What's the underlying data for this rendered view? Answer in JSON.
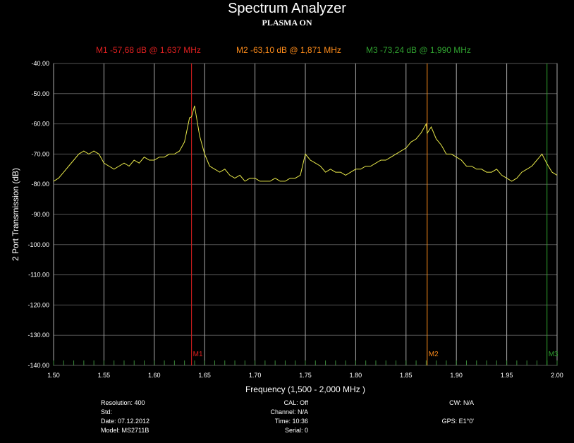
{
  "chart_data": {
    "type": "line",
    "title": "Spectrum Analyzer",
    "subtitle": "PLASMA ON",
    "xlabel": "Frequency (1,500 - 2,000 MHz )",
    "ylabel": "2 Port Transmission (dB)",
    "xlim": [
      1.5,
      2.0
    ],
    "ylim": [
      -140,
      -40
    ],
    "x_ticks": [
      "1.50",
      "1.55",
      "1.60",
      "1.65",
      "1.70",
      "1.75",
      "1.80",
      "1.85",
      "1.90",
      "1.95",
      "2.00"
    ],
    "y_ticks": [
      "-40.00",
      "-50.00",
      "-60.00",
      "-70.00",
      "-80.00",
      "-90.00",
      "-100.00",
      "-110.00",
      "-120.00",
      "-130.00",
      "-140.00"
    ],
    "grid": true,
    "series": [
      {
        "color": "#e8e84a",
        "x": [
          1.5,
          1.505,
          1.51,
          1.515,
          1.52,
          1.525,
          1.53,
          1.535,
          1.54,
          1.545,
          1.55,
          1.555,
          1.56,
          1.565,
          1.57,
          1.575,
          1.58,
          1.585,
          1.59,
          1.595,
          1.6,
          1.605,
          1.61,
          1.615,
          1.62,
          1.625,
          1.63,
          1.635,
          1.637,
          1.64,
          1.645,
          1.65,
          1.655,
          1.66,
          1.665,
          1.67,
          1.675,
          1.68,
          1.685,
          1.69,
          1.695,
          1.7,
          1.705,
          1.71,
          1.715,
          1.72,
          1.725,
          1.73,
          1.735,
          1.74,
          1.745,
          1.75,
          1.755,
          1.76,
          1.765,
          1.77,
          1.775,
          1.78,
          1.785,
          1.79,
          1.795,
          1.8,
          1.805,
          1.81,
          1.815,
          1.82,
          1.825,
          1.83,
          1.835,
          1.84,
          1.845,
          1.85,
          1.855,
          1.86,
          1.865,
          1.87,
          1.871,
          1.875,
          1.88,
          1.885,
          1.89,
          1.895,
          1.9,
          1.905,
          1.91,
          1.915,
          1.92,
          1.925,
          1.93,
          1.935,
          1.94,
          1.945,
          1.95,
          1.955,
          1.96,
          1.965,
          1.97,
          1.975,
          1.98,
          1.985,
          1.99,
          1.995,
          2.0
        ],
        "y": [
          -79,
          -78,
          -76,
          -74,
          -72,
          -70,
          -69,
          -70,
          -69,
          -70,
          -73,
          -74,
          -75,
          -74,
          -73,
          -74,
          -72,
          -73,
          -71,
          -72,
          -72,
          -71,
          -71,
          -70,
          -70,
          -69,
          -66,
          -58,
          -57.68,
          -54,
          -64,
          -70,
          -74,
          -75,
          -76,
          -75,
          -77,
          -78,
          -77,
          -79,
          -78,
          -78,
          -79,
          -79,
          -79,
          -78,
          -79,
          -79,
          -78,
          -78,
          -77,
          -70,
          -72,
          -73,
          -74,
          -76,
          -75,
          -76,
          -76,
          -77,
          -76,
          -75,
          -75,
          -74,
          -74,
          -73,
          -72,
          -72,
          -71,
          -70,
          -69,
          -68,
          -66,
          -65,
          -63,
          -60,
          -63.1,
          -61,
          -65,
          -67,
          -70,
          -70,
          -71,
          -72,
          -74,
          -74,
          -75,
          -75,
          -76,
          -76,
          -75,
          -77,
          -78,
          -79,
          -78,
          -76,
          -75,
          -74,
          -72,
          -70,
          -73.24,
          -76,
          -77
        ]
      }
    ],
    "markers": [
      {
        "name": "M1",
        "label": "M1  -57,68 dB @ 1,637 MHz",
        "x": 1.637,
        "y": -57.68,
        "color": "#e02020"
      },
      {
        "name": "M2",
        "label": "M2  -63,10 dB @ 1,871 MHz",
        "x": 1.871,
        "y": -63.1,
        "color": "#ff8c1a"
      },
      {
        "name": "M3",
        "label": "M3  -73,24 dB @ 1,990 MHz",
        "x": 1.99,
        "y": -73.24,
        "color": "#2fa02f"
      }
    ]
  },
  "footer": {
    "left": [
      "Resolution: 400",
      "Std:",
      "Date: 07.12.2012",
      "Model: MS2711B"
    ],
    "mid": [
      "CAL: Off",
      "Channel: N/A",
      "Time: 10:36",
      "Serial: 0"
    ],
    "right": [
      "CW: N/A",
      "",
      "GPS:    E1°0'"
    ]
  }
}
